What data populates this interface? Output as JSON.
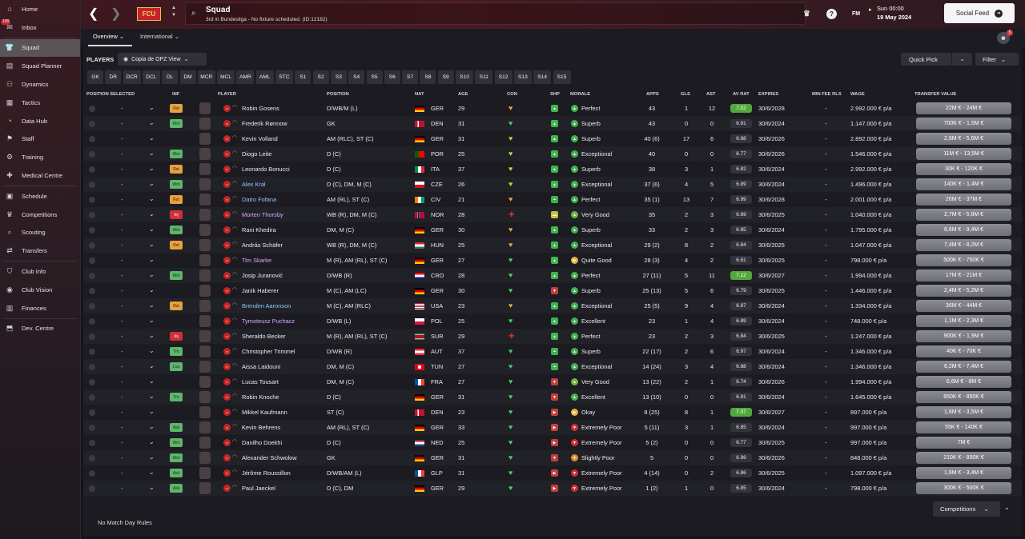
{
  "sidebar": {
    "items": [
      {
        "label": "Home",
        "icon": "home-icon",
        "glyph": "⌂",
        "active": false
      },
      {
        "label": "Inbox",
        "icon": "inbox-icon",
        "glyph": "✉",
        "active": false,
        "badge": "100"
      },
      {
        "label": "Squad",
        "icon": "shirt-icon",
        "glyph": "👕",
        "active": true
      },
      {
        "label": "Squad Planner",
        "icon": "planner-icon",
        "glyph": "▤",
        "active": false
      },
      {
        "label": "Dynamics",
        "icon": "dynamics-icon",
        "glyph": "⚇",
        "active": false
      },
      {
        "label": "Tactics",
        "icon": "tactics-icon",
        "glyph": "▦",
        "active": false
      },
      {
        "label": "Data Hub",
        "icon": "data-hub-icon",
        "glyph": "◔",
        "active": false
      },
      {
        "label": "Staff",
        "icon": "staff-icon",
        "glyph": "⚑",
        "active": false
      },
      {
        "label": "Training",
        "icon": "training-icon",
        "glyph": "⚙",
        "active": false
      },
      {
        "label": "Medical Centre",
        "icon": "medical-icon",
        "glyph": "✚",
        "active": false
      },
      {
        "label": "Schedule",
        "icon": "calendar-icon",
        "glyph": "▣",
        "active": false
      },
      {
        "label": "Competitions",
        "icon": "trophy-icon",
        "glyph": "♛",
        "active": false
      },
      {
        "label": "Scouting",
        "icon": "scouting-icon",
        "glyph": "⌕",
        "active": false
      },
      {
        "label": "Transfers",
        "icon": "transfers-icon",
        "glyph": "⇄",
        "active": false
      },
      {
        "label": "Club Info",
        "icon": "club-info-icon",
        "glyph": "⛉",
        "active": false
      },
      {
        "label": "Club Vision",
        "icon": "vision-icon",
        "glyph": "◉",
        "active": false
      },
      {
        "label": "Finances",
        "icon": "finances-icon",
        "glyph": "▥",
        "active": false
      },
      {
        "label": "Dev. Centre",
        "icon": "dev-centre-icon",
        "glyph": "⬒",
        "active": false
      }
    ]
  },
  "header": {
    "club_abbr": "FCU",
    "title": "Squad",
    "subtitle": "3rd in Bundesliga - No fixture scheduled. (ID:12182)",
    "fm_label": "FM",
    "date_time": "Sun 00:00",
    "date": "19 May 2024",
    "social_feed": "Social Feed",
    "notif_count": "5"
  },
  "tabs": {
    "overview": "Overview",
    "international": "International"
  },
  "toolbar": {
    "players_label": "PLAYERS",
    "view": "Copia de OPZ View",
    "quick_pick": "Quick Pick",
    "filter": "Filter"
  },
  "position_filters": [
    "GK",
    "DR",
    "DCR",
    "DCL",
    "DL",
    "DM",
    "MCR",
    "MCL",
    "AMR",
    "AML",
    "STC",
    "S1",
    "S2",
    "S3",
    "S4",
    "S5",
    "S6",
    "S7",
    "S8",
    "S9",
    "S10",
    "S11",
    "S12",
    "S13",
    "S14",
    "S15"
  ],
  "columns": {
    "position_selected": "POSITION SELECTED",
    "inf": "INF",
    "player": "PLAYER",
    "position": "POSITION",
    "nat": "NAT",
    "age": "AGE",
    "con": "CON",
    "shp": "SHP",
    "morale": "MORALE",
    "apps": "APPS",
    "gls": "GLS",
    "ast": "AST",
    "av_rat": "AV RAT",
    "expires": "EXPIRES",
    "min_fee": "MIN FEE RLS",
    "wage": "WAGE",
    "transfer_value": "TRANSFER VALUE"
  },
  "players": [
    {
      "sel": "-",
      "inf": "Rst",
      "name": "Robin Gosens",
      "pos": "D/WB/M (L)",
      "nat": "GER",
      "age": "29",
      "con": "tired",
      "shp": "up",
      "morale": "Perfect",
      "apps": "43",
      "gls": "1",
      "ast": "12",
      "avr": "7.02",
      "expires": "30/6/2028",
      "fee": "-",
      "wage": "2.992.000 € p/a",
      "tv": "22M € - 24M €"
    },
    {
      "sel": "-",
      "inf": "Wnt",
      "name": "Frederik Rønnow",
      "pos": "GK",
      "nat": "DEN",
      "age": "31",
      "con": "fit",
      "shp": "up",
      "morale": "Superb",
      "apps": "43",
      "gls": "0",
      "ast": "0",
      "avr": "6.91",
      "expires": "30/6/2024",
      "fee": "-",
      "wage": "1.147.000 € p/a",
      "tv": "700K € - 1,5M €"
    },
    {
      "sel": "-",
      "inf": "",
      "name": "Kevin Volland",
      "pos": "AM (RLC), ST (C)",
      "nat": "GER",
      "age": "31",
      "con": "ok",
      "shp": "up",
      "morale": "Superb",
      "apps": "40 (6)",
      "gls": "17",
      "ast": "6",
      "avr": "6.88",
      "expires": "30/6/2026",
      "fee": "-",
      "wage": "2.892.000 € p/a",
      "tv": "2,6M € - 5,6M €"
    },
    {
      "sel": "-",
      "inf": "Wnt",
      "name": "Diogo Leite",
      "pos": "D (C)",
      "nat": "POR",
      "age": "25",
      "con": "ok",
      "shp": "up",
      "morale": "Exceptional",
      "apps": "40",
      "gls": "0",
      "ast": "0",
      "avr": "6.77",
      "expires": "30/6/2026",
      "fee": "-",
      "wage": "1.546.000 € p/a",
      "tv": "11M € - 13,5M €"
    },
    {
      "sel": "-",
      "inf": "Rst",
      "name": "Leonardo Bonucci",
      "pos": "D (C)",
      "nat": "ITA",
      "age": "37",
      "con": "ok",
      "shp": "up",
      "morale": "Superb",
      "apps": "38",
      "gls": "3",
      "ast": "1",
      "avr": "6.82",
      "expires": "30/6/2024",
      "fee": "-",
      "wage": "2.992.000 € p/a",
      "tv": "30K € - 120K €"
    },
    {
      "sel": "-",
      "inf": "Wnt",
      "name": "Alex Král",
      "pos": "D (C), DM, M (C)",
      "nat": "CZE",
      "age": "26",
      "con": "ok",
      "shp": "up",
      "morale": "Exceptional",
      "apps": "37 (6)",
      "gls": "4",
      "ast": "5",
      "avr": "6.89",
      "expires": "30/6/2024",
      "fee": "-",
      "wage": "1.496.000 € p/a",
      "tv": "140K € - 1,4M €",
      "color": "blue"
    },
    {
      "sel": "-",
      "inf": "Rst",
      "name": "Datro Fofana",
      "pos": "AM (RL), ST (C)",
      "nat": "CIV",
      "age": "21",
      "con": "tired",
      "shp": "upup",
      "morale": "Perfect",
      "apps": "35 (1)",
      "gls": "13",
      "ast": "7",
      "avr": "6.99",
      "expires": "30/6/2028",
      "fee": "-",
      "wage": "2.001.000 € p/a",
      "tv": "26M € - 37M €",
      "color": "blue"
    },
    {
      "sel": "-",
      "inf": "Inj",
      "name": "Morten Thorsby",
      "pos": "WB (R), DM, M (C)",
      "nat": "NOR",
      "age": "28",
      "con": "inj",
      "shp": "flat",
      "morale": "Very Good",
      "apps": "35",
      "gls": "2",
      "ast": "3",
      "avr": "6.69",
      "expires": "30/6/2025",
      "fee": "-",
      "wage": "1.040.000 € p/a",
      "tv": "2,7M € - 5,8M €",
      "color": "pink"
    },
    {
      "sel": "-",
      "inf": "Wnt",
      "name": "Rani Khedira",
      "pos": "DM, M (C)",
      "nat": "GER",
      "age": "30",
      "con": "tired",
      "shp": "up",
      "morale": "Superb",
      "apps": "33",
      "gls": "2",
      "ast": "3",
      "avr": "6.85",
      "expires": "30/6/2024",
      "fee": "-",
      "wage": "1.795.000 € p/a",
      "tv": "8,6M € - 9,4M €"
    },
    {
      "sel": "-",
      "inf": "Rst",
      "name": "András Schäfer",
      "pos": "WB (R), DM, M (C)",
      "nat": "HUN",
      "age": "25",
      "con": "tired",
      "shp": "up",
      "morale": "Exceptional",
      "apps": "29 (2)",
      "gls": "8",
      "ast": "2",
      "avr": "6.84",
      "expires": "30/6/2025",
      "fee": "-",
      "wage": "1.047.000 € p/a",
      "tv": "7,4M € - 8,2M €"
    },
    {
      "sel": "-",
      "inf": "",
      "name": "Tim Skarke",
      "pos": "M (R), AM (RL), ST (C)",
      "nat": "GER",
      "age": "27",
      "con": "fit",
      "shp": "up",
      "morale": "Quite Good",
      "apps": "28 (3)",
      "gls": "4",
      "ast": "2",
      "avr": "6.61",
      "expires": "30/6/2025",
      "fee": "-",
      "wage": "798.000 € p/a",
      "tv": "500K € - 750K €",
      "color": "pink"
    },
    {
      "sel": "-",
      "inf": "Wnt",
      "name": "Josip Juranović",
      "pos": "D/WB (R)",
      "nat": "CRO",
      "age": "28",
      "con": "fit",
      "shp": "up",
      "morale": "Perfect",
      "apps": "27 (11)",
      "gls": "5",
      "ast": "11",
      "avr": "7.12",
      "expires": "30/6/2027",
      "fee": "-",
      "wage": "1.994.000 € p/a",
      "tv": "17M € - 21M €"
    },
    {
      "sel": "-",
      "inf": "",
      "name": "Janik Haberer",
      "pos": "M (C), AM (LC)",
      "nat": "GER",
      "age": "30",
      "con": "fit",
      "shp": "down",
      "morale": "Superb",
      "apps": "25 (13)",
      "gls": "5",
      "ast": "6",
      "avr": "6.79",
      "expires": "30/6/2025",
      "fee": "-",
      "wage": "1.446.000 € p/a",
      "tv": "2,4M € - 5,2M €"
    },
    {
      "sel": "-",
      "inf": "Rst",
      "name": "Brenden Aaronson",
      "pos": "M (C), AM (RLC)",
      "nat": "USA",
      "age": "23",
      "con": "tired",
      "shp": "up",
      "morale": "Exceptional",
      "apps": "25 (5)",
      "gls": "9",
      "ast": "4",
      "avr": "6.87",
      "expires": "30/6/2024",
      "fee": "-",
      "wage": "1.334.000 € p/a",
      "tv": "36M € - 44M €",
      "color": "blue"
    },
    {
      "sel": "-",
      "inf": "",
      "name": "Tymoteusz Puchacz",
      "pos": "D/WB (L)",
      "nat": "POL",
      "age": "25",
      "con": "fit",
      "shp": "up",
      "morale": "Excellent",
      "apps": "23",
      "gls": "1",
      "ast": "4",
      "avr": "6.89",
      "expires": "30/6/2024",
      "fee": "-",
      "wage": "748.000 € p/a",
      "tv": "1,1M € - 2,3M €",
      "color": "pink"
    },
    {
      "sel": "-",
      "inf": "Inj",
      "name": "Sheraldo Becker",
      "pos": "M (R), AM (RL), ST (C)",
      "nat": "SUR",
      "age": "29",
      "con": "inj",
      "shp": "up",
      "morale": "Perfect",
      "apps": "23",
      "gls": "2",
      "ast": "3",
      "avr": "6.84",
      "expires": "30/6/2025",
      "fee": "-",
      "wage": "1.247.000 € p/a",
      "tv": "900K € - 1,9M €"
    },
    {
      "sel": "-",
      "inf": "Trn",
      "name": "Christopher Trimmel",
      "pos": "D/WB (R)",
      "nat": "AUT",
      "age": "37",
      "con": "fit",
      "shp": "upup",
      "morale": "Superb",
      "apps": "22 (17)",
      "gls": "2",
      "ast": "6",
      "avr": "6.97",
      "expires": "30/6/2024",
      "fee": "-",
      "wage": "1.346.000 € p/a",
      "tv": "40K € - 70K €"
    },
    {
      "sel": "-",
      "inf": "Loa",
      "name": "Aissa Laidouni",
      "pos": "DM, M (C)",
      "nat": "TUN",
      "age": "27",
      "con": "fit",
      "shp": "upup",
      "morale": "Exceptional",
      "apps": "14 (24)",
      "gls": "3",
      "ast": "4",
      "avr": "6.88",
      "expires": "30/6/2024",
      "fee": "-",
      "wage": "1.346.000 € p/a",
      "tv": "6,2M € - 7,4M €"
    },
    {
      "sel": "-",
      "inf": "",
      "name": "Lucas Tousart",
      "pos": "DM, M (C)",
      "nat": "FRA",
      "age": "27",
      "con": "fit",
      "shp": "down",
      "morale": "Very Good",
      "apps": "13 (22)",
      "gls": "2",
      "ast": "1",
      "avr": "6.74",
      "expires": "30/6/2026",
      "fee": "-",
      "wage": "1.994.000 € p/a",
      "tv": "6,6M € - 8M €"
    },
    {
      "sel": "-",
      "inf": "Trn",
      "name": "Robin Knoche",
      "pos": "D (C)",
      "nat": "GER",
      "age": "31",
      "con": "fit",
      "shp": "down",
      "morale": "Excellent",
      "apps": "13 (10)",
      "gls": "0",
      "ast": "0",
      "avr": "6.81",
      "expires": "30/6/2024",
      "fee": "-",
      "wage": "1.645.000 € p/a",
      "tv": "650K € - 850K €"
    },
    {
      "sel": "-",
      "inf": "",
      "name": "Mikkel Kaufmann",
      "pos": "ST (C)",
      "nat": "DEN",
      "age": "23",
      "con": "fit",
      "shp": "right",
      "morale": "Okay",
      "apps": "8 (25)",
      "gls": "8",
      "ast": "1",
      "avr": "7.07",
      "expires": "30/6/2027",
      "fee": "-",
      "wage": "897.000 € p/a",
      "tv": "1,6M € - 3,5M €"
    },
    {
      "sel": "-",
      "inf": "Ask",
      "name": "Kevin Behrens",
      "pos": "AM (RL), ST (C)",
      "nat": "GER",
      "age": "33",
      "con": "fit",
      "shp": "right",
      "morale": "Extremely Poor",
      "apps": "5 (11)",
      "gls": "3",
      "ast": "1",
      "avr": "6.85",
      "expires": "30/6/2024",
      "fee": "-",
      "wage": "997.000 € p/a",
      "tv": "55K € - 140K €"
    },
    {
      "sel": "-",
      "inf": "Wnt",
      "name": "Danilho Doekhi",
      "pos": "D (C)",
      "nat": "NED",
      "age": "25",
      "con": "fit",
      "shp": "right",
      "morale": "Extremely Poor",
      "apps": "5 (2)",
      "gls": "0",
      "ast": "0",
      "avr": "6.77",
      "expires": "30/6/2025",
      "fee": "-",
      "wage": "997.000 € p/a",
      "tv": "7M €"
    },
    {
      "sel": "-",
      "inf": "Wnt",
      "name": "Alexander Schwolow",
      "pos": "GK",
      "nat": "GER",
      "age": "31",
      "con": "fit",
      "shp": "down",
      "morale": "Slightly Poor",
      "apps": "5",
      "gls": "0",
      "ast": "0",
      "avr": "6.96",
      "expires": "30/6/2026",
      "fee": "-",
      "wage": "848.000 € p/a",
      "tv": "210K € - 850K €"
    },
    {
      "sel": "-",
      "inf": "Ask",
      "name": "Jérôme Roussillon",
      "pos": "D/WB/AM (L)",
      "nat": "GLP",
      "age": "31",
      "con": "fit",
      "shp": "right",
      "morale": "Extremely Poor",
      "apps": "4 (14)",
      "gls": "0",
      "ast": "2",
      "avr": "6.86",
      "expires": "30/6/2025",
      "fee": "-",
      "wage": "1.097.000 € p/a",
      "tv": "1,6M € - 3,4M €"
    },
    {
      "sel": "-",
      "inf": "Ask",
      "name": "Paul Jaeckel",
      "pos": "D (C), DM",
      "nat": "GER",
      "age": "29",
      "con": "fit",
      "shp": "right",
      "morale": "Extremely Poor",
      "apps": "1 (2)",
      "gls": "1",
      "ast": "0",
      "avr": "6.85",
      "expires": "30/6/2024",
      "fee": "-",
      "wage": "798.000 € p/a",
      "tv": "300K € - 500K €"
    }
  ],
  "footer": {
    "rules": "No Match Day Rules",
    "competitions": "Competitions"
  },
  "colors": {
    "accent": "#c5242c",
    "high_rating": "#53a83a",
    "con_green": "#41d06b",
    "con_yellow": "#e0b43a",
    "injury": "#d12e35"
  }
}
